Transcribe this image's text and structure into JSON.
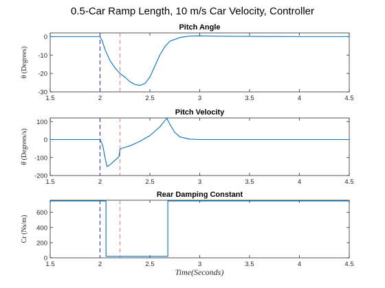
{
  "figure": {
    "title": "0.5-Car Ramp Length,  10 m/s Car Velocity,  Controller",
    "xlabel": "Time(Seconds)"
  },
  "colors": {
    "line": "#0072bd",
    "blue_marker": "#1f1fd8",
    "red_marker": "#e87a7a",
    "axis": "#262626"
  },
  "chart_data": [
    {
      "type": "line",
      "title": "Pitch Angle",
      "ylabel": "θ (Degrees)",
      "xlim": [
        1.5,
        4.5
      ],
      "ylim": [
        -30,
        2
      ],
      "xticks": [
        1.5,
        2,
        2.5,
        3,
        3.5,
        4,
        4.5
      ],
      "xtick_labels": [
        "1.5",
        "2",
        "2.5",
        "3",
        "3.5",
        "4",
        "4.5"
      ],
      "yticks": [
        -30,
        -20,
        -10,
        0
      ],
      "ytick_labels": [
        "-30",
        "-20",
        "-10",
        "0"
      ],
      "vlines": [
        {
          "x": 2.0,
          "color": "blue",
          "style": "dashed"
        },
        {
          "x": 2.2,
          "color": "red",
          "style": "dashed"
        }
      ],
      "series": [
        {
          "x": [
            1.5,
            2.0,
            2.02,
            2.05,
            2.1,
            2.15,
            2.2,
            2.25,
            2.3,
            2.35,
            2.4,
            2.45,
            2.5,
            2.55,
            2.6,
            2.65,
            2.7,
            2.8,
            2.9,
            3.0,
            3.2,
            3.5,
            4.0,
            4.5
          ],
          "y": [
            0,
            0,
            -2,
            -7,
            -13,
            -17,
            -20,
            -22,
            -24.5,
            -26,
            -26.5,
            -25.5,
            -22,
            -16,
            -10,
            -5.5,
            -2.5,
            -0.5,
            0.3,
            0.4,
            0.2,
            0.1,
            0,
            0
          ]
        }
      ]
    },
    {
      "type": "line",
      "title": "Pitch Velocity",
      "ylabel": "θ̇ (Degrees/s)",
      "xlim": [
        1.5,
        4.5
      ],
      "ylim": [
        -200,
        120
      ],
      "xticks": [
        1.5,
        2,
        2.5,
        3,
        3.5,
        4,
        4.5
      ],
      "xtick_labels": [
        "1.5",
        "2",
        "2.5",
        "3",
        "3.5",
        "4",
        "4.5"
      ],
      "yticks": [
        -200,
        -100,
        0,
        100
      ],
      "ytick_labels": [
        "-200",
        "-100",
        "0",
        "100"
      ],
      "vlines": [
        {
          "x": 2.0,
          "color": "blue",
          "style": "dashed"
        },
        {
          "x": 2.2,
          "color": "red",
          "style": "dashed"
        }
      ],
      "series": [
        {
          "x": [
            1.5,
            2.0,
            2.01,
            2.03,
            2.05,
            2.07,
            2.1,
            2.15,
            2.19,
            2.2,
            2.22,
            2.3,
            2.4,
            2.5,
            2.6,
            2.65,
            2.67,
            2.7,
            2.75,
            2.8,
            2.9,
            3.0,
            3.2,
            3.5,
            4.0,
            4.5
          ],
          "y": [
            0,
            0,
            -10,
            -40,
            -100,
            -150,
            -140,
            -115,
            -95,
            -55,
            -48,
            -35,
            -10,
            22,
            70,
            105,
            118,
            85,
            40,
            15,
            2,
            0,
            0,
            0,
            0,
            0
          ]
        }
      ]
    },
    {
      "type": "line",
      "title": "Rear Damping Constant",
      "ylabel": "Cr (Ns/m)",
      "xlim": [
        1.5,
        4.5
      ],
      "ylim": [
        0,
        760
      ],
      "xticks": [
        1.5,
        2,
        2.5,
        3,
        3.5,
        4,
        4.5
      ],
      "xtick_labels": [
        "1.5",
        "2",
        "2.5",
        "3",
        "3.5",
        "4",
        "4.5"
      ],
      "yticks": [
        0,
        200,
        400,
        600
      ],
      "ytick_labels": [
        "0",
        "200",
        "400",
        "600"
      ],
      "vlines": [
        {
          "x": 2.0,
          "color": "blue",
          "style": "dashed"
        },
        {
          "x": 2.2,
          "color": "red",
          "style": "dashed"
        }
      ],
      "series": [
        {
          "x": [
            1.5,
            2.06,
            2.06,
            2.68,
            2.68,
            4.5
          ],
          "y": [
            750,
            750,
            20,
            20,
            750,
            750
          ]
        }
      ]
    }
  ]
}
